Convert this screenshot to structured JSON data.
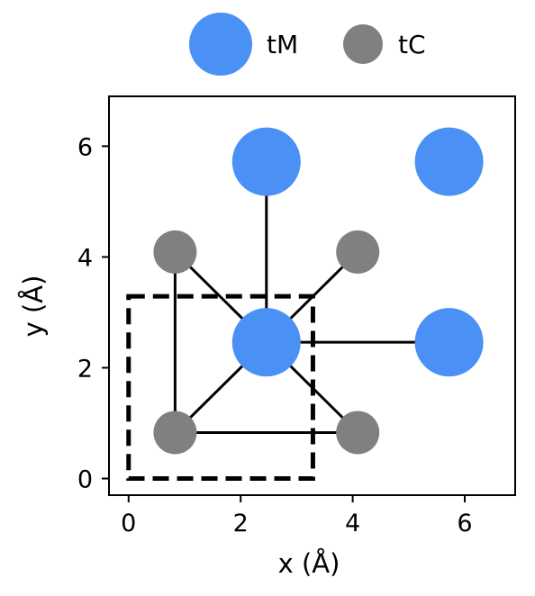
{
  "chart_data": {
    "type": "scatter",
    "xlabel": "x (Å)",
    "ylabel": "y (Å)",
    "xlim": [
      -0.35,
      6.9
    ],
    "ylim": [
      -0.3,
      6.9
    ],
    "xticks": [
      0,
      2,
      4,
      6
    ],
    "yticks": [
      0,
      2,
      4,
      6
    ],
    "grid": false,
    "legend_position": "top",
    "series": [
      {
        "name": "tM",
        "color": "#4a90f5",
        "points": [
          {
            "x": 2.46,
            "y": 2.46
          },
          {
            "x": 5.72,
            "y": 2.46
          },
          {
            "x": 2.46,
            "y": 5.72
          },
          {
            "x": 5.72,
            "y": 5.72
          }
        ]
      },
      {
        "name": "tC",
        "color": "#808080",
        "points": [
          {
            "x": 0.83,
            "y": 0.83
          },
          {
            "x": 4.09,
            "y": 0.83
          },
          {
            "x": 0.83,
            "y": 4.09
          },
          {
            "x": 4.09,
            "y": 4.09
          }
        ]
      }
    ],
    "bonds": [
      {
        "from": [
          2.46,
          2.46
        ],
        "to": [
          0.83,
          0.83
        ]
      },
      {
        "from": [
          2.46,
          2.46
        ],
        "to": [
          4.09,
          0.83
        ]
      },
      {
        "from": [
          2.46,
          2.46
        ],
        "to": [
          0.83,
          4.09
        ]
      },
      {
        "from": [
          2.46,
          2.46
        ],
        "to": [
          4.09,
          4.09
        ]
      },
      {
        "from": [
          2.46,
          2.46
        ],
        "to": [
          5.72,
          2.46
        ]
      },
      {
        "from": [
          2.46,
          2.46
        ],
        "to": [
          2.46,
          5.72
        ]
      },
      {
        "from": [
          0.83,
          0.83
        ],
        "to": [
          0.83,
          4.09
        ]
      },
      {
        "from": [
          0.83,
          0.83
        ],
        "to": [
          4.09,
          0.83
        ]
      }
    ],
    "unit_cell": {
      "x": [
        0,
        3.29
      ],
      "y": [
        0,
        3.29
      ],
      "style": "dashed"
    }
  }
}
